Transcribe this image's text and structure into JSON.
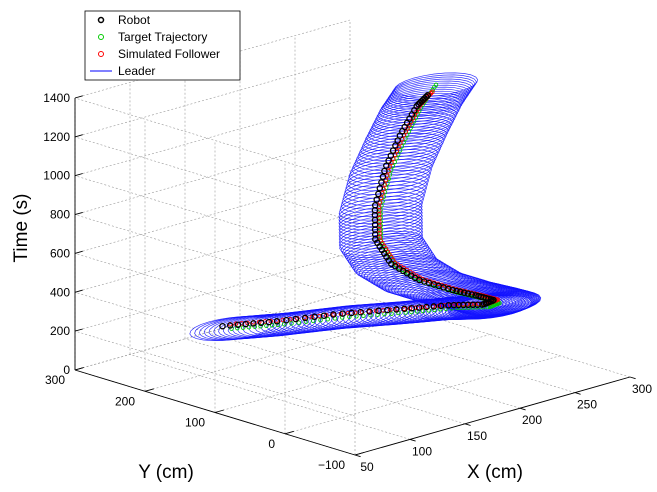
{
  "chart_data": {
    "type": "line",
    "projection": "3d",
    "title": "",
    "xlabel": "X (cm)",
    "ylabel": "Y (cm)",
    "zlabel": "Time (s)",
    "xlim": [
      50,
      300
    ],
    "ylim": [
      -100,
      300
    ],
    "zlim": [
      0,
      1400
    ],
    "x_ticks": [
      "50",
      "100",
      "150",
      "200",
      "250",
      "300"
    ],
    "y_ticks": [
      "−100",
      "0",
      "100",
      "200",
      "300"
    ],
    "z_ticks": [
      "0",
      "200",
      "400",
      "600",
      "800",
      "1000",
      "1200",
      "1400"
    ],
    "grid": true,
    "legend_position": "top-left",
    "legend": [
      {
        "label": "Robot",
        "color": "#000000",
        "marker": "circle"
      },
      {
        "label": "Target Trajectory",
        "color": "#00cc00",
        "marker": "circle"
      },
      {
        "label": "Simulated Follower",
        "color": "#ff0000",
        "marker": "circle"
      },
      {
        "label": "Leader",
        "color": "#0000ff",
        "marker": "line"
      }
    ],
    "series": [
      {
        "name": "Target Trajectory",
        "x": [
          135,
          165,
          200,
          230,
          250,
          255,
          245,
          220,
          190,
          160,
          145,
          150,
          175,
          210,
          240,
          260,
          270
        ],
        "y": [
          210,
          185,
          150,
          110,
          70,
          30,
          0,
          -15,
          -25,
          -25,
          -10,
          20,
          60,
          100,
          125,
          135,
          130
        ],
        "z": [
          175,
          175,
          195,
          215,
          250,
          290,
          360,
          440,
          530,
          630,
          720,
          800,
          890,
          990,
          1090,
          1200,
          1300
        ]
      },
      {
        "name": "Simulated Follower",
        "x": [
          135,
          165,
          200,
          230,
          250,
          255,
          245,
          220,
          190,
          160,
          145,
          150,
          175,
          210,
          240,
          260,
          268
        ],
        "y": [
          212,
          187,
          152,
          112,
          72,
          32,
          2,
          -13,
          -23,
          -23,
          -8,
          22,
          62,
          102,
          127,
          136,
          132
        ],
        "z": [
          195,
          195,
          212,
          232,
          265,
          305,
          375,
          455,
          545,
          645,
          735,
          818,
          905,
          1005,
          1105,
          1210,
          1265
        ]
      },
      {
        "name": "Robot",
        "x": [
          130,
          162,
          198,
          228,
          248,
          252,
          243,
          218,
          188,
          158,
          143,
          148,
          173,
          208,
          238,
          258,
          265
        ],
        "y": [
          215,
          190,
          155,
          115,
          75,
          35,
          5,
          -10,
          -20,
          -20,
          -5,
          25,
          65,
          105,
          130,
          138,
          134
        ],
        "z": [
          190,
          190,
          210,
          230,
          262,
          302,
          372,
          452,
          542,
          642,
          732,
          815,
          900,
          1000,
          1100,
          1205,
          1250
        ]
      },
      {
        "name": "Leader",
        "x": [
          135,
          165,
          200,
          230,
          250,
          255,
          245,
          220,
          190,
          160,
          145,
          150,
          175,
          210,
          240,
          260,
          270
        ],
        "y": [
          210,
          185,
          150,
          110,
          70,
          30,
          0,
          -15,
          -25,
          -25,
          -10,
          20,
          60,
          100,
          125,
          135,
          130
        ],
        "z": [
          175,
          175,
          195,
          215,
          250,
          290,
          360,
          440,
          530,
          630,
          720,
          800,
          890,
          990,
          1090,
          1200,
          1300
        ]
      }
    ]
  }
}
